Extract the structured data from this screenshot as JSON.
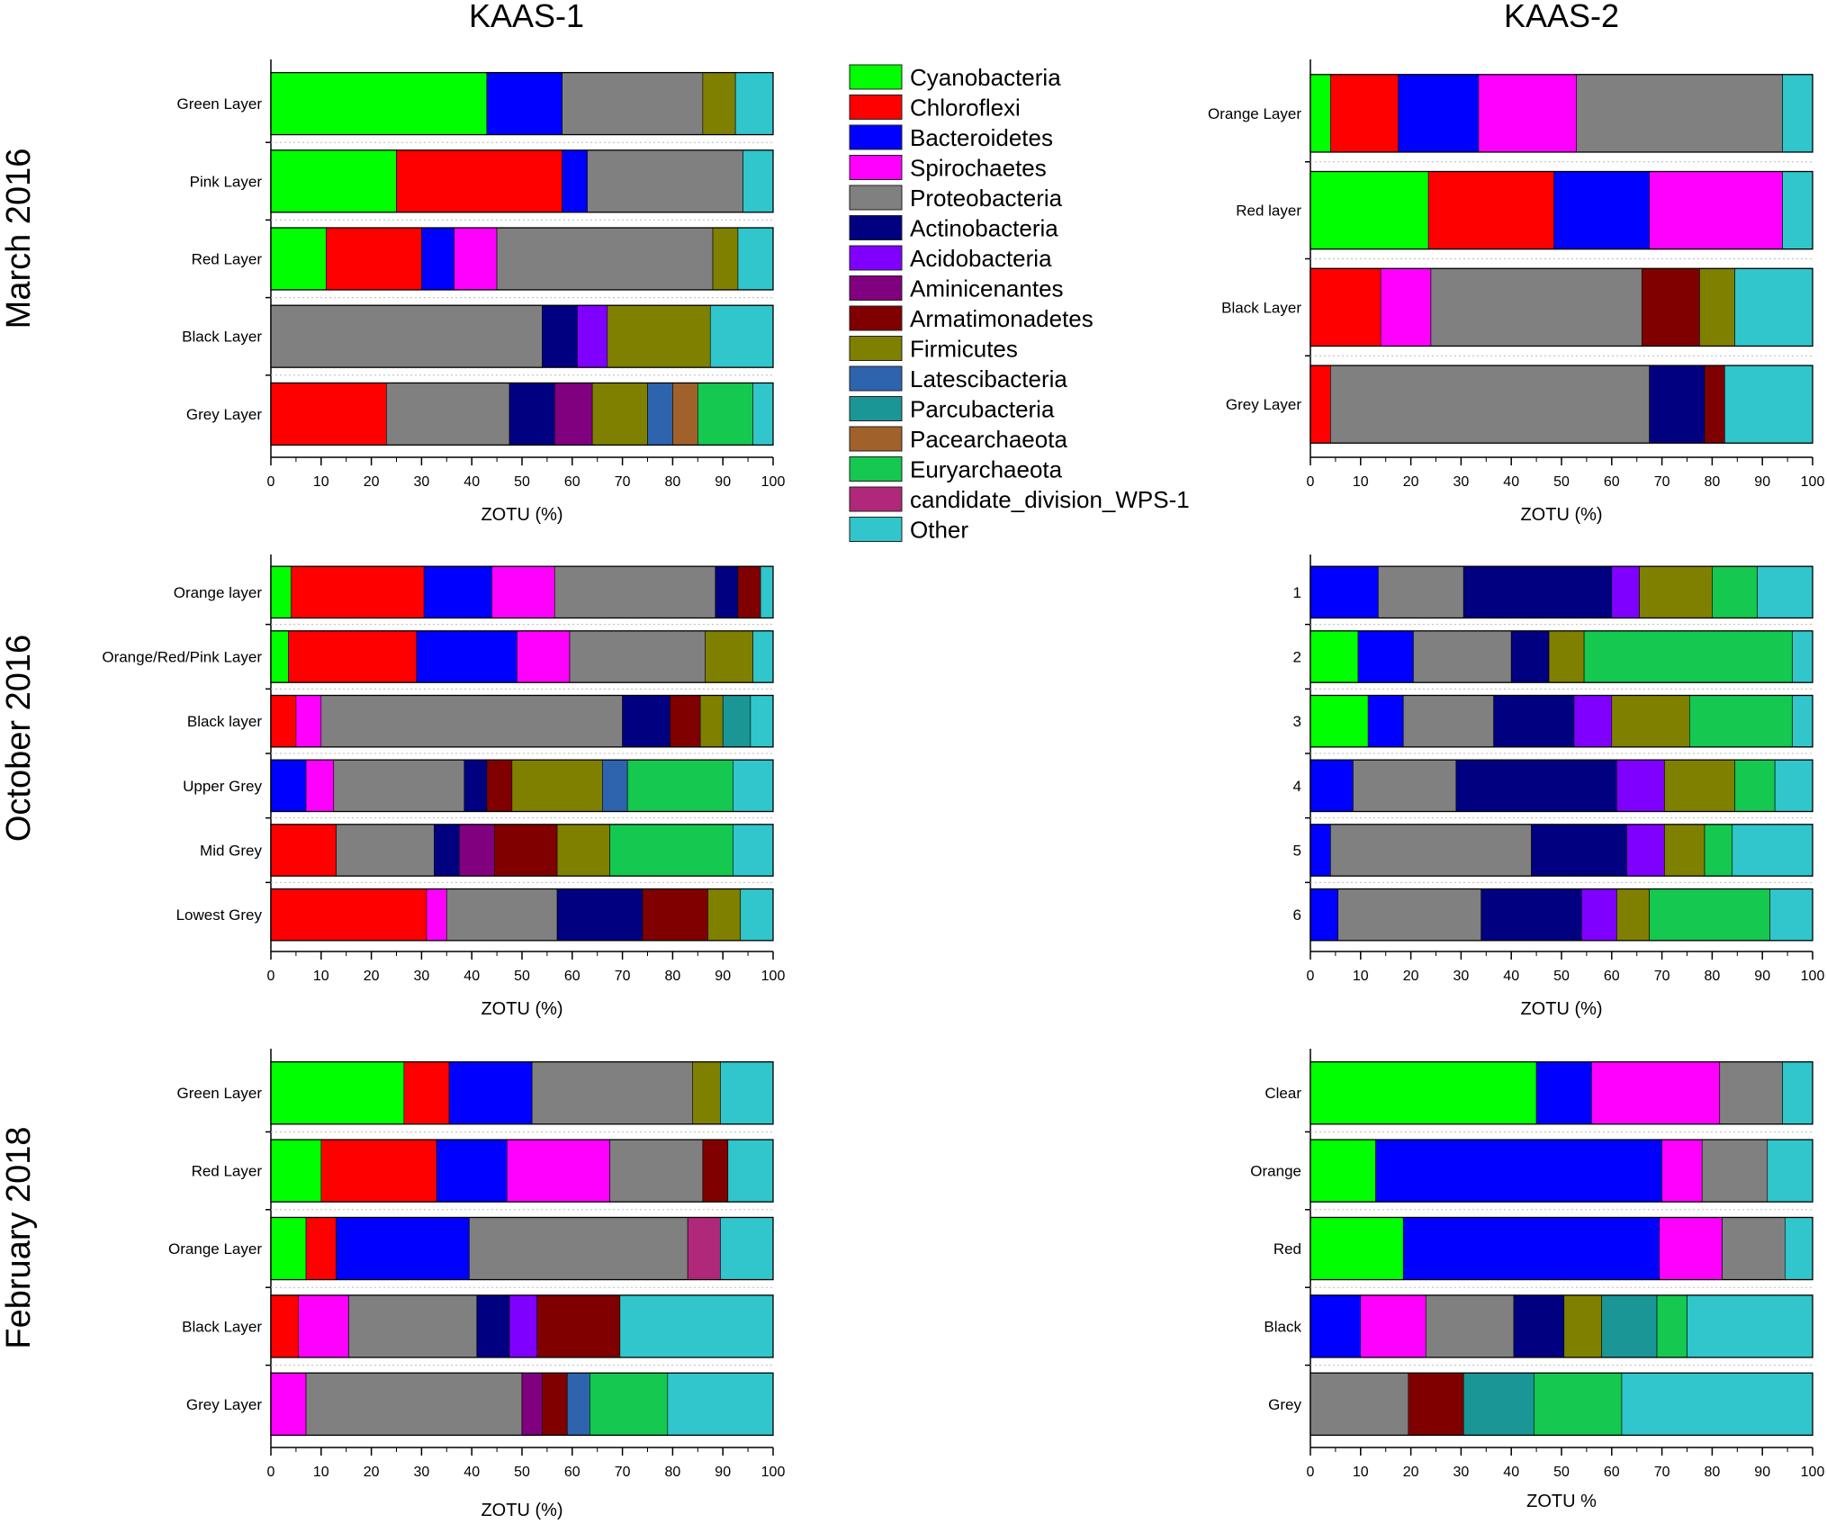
{
  "columns": [
    "KAAS-1",
    "KAAS-2"
  ],
  "row_titles": [
    "March 2016",
    "October 2016",
    "February 2018"
  ],
  "legend": [
    {
      "name": "Cyanobacteria",
      "color": "#00ff00"
    },
    {
      "name": "Chloroflexi",
      "color": "#ff0000"
    },
    {
      "name": "Bacteroidetes",
      "color": "#0000ff"
    },
    {
      "name": "Spirochaetes",
      "color": "#ff00ff"
    },
    {
      "name": "Proteobacteria",
      "color": "#808080"
    },
    {
      "name": "Actinobacteria",
      "color": "#000080"
    },
    {
      "name": "Acidobacteria",
      "color": "#8000ff"
    },
    {
      "name": "Aminicenantes",
      "color": "#800080"
    },
    {
      "name": "Armatimonadetes",
      "color": "#800000"
    },
    {
      "name": "Firmicutes",
      "color": "#808000"
    },
    {
      "name": "Latescibacteria",
      "color": "#2e64ae"
    },
    {
      "name": "Parcubacteria",
      "color": "#1a9696"
    },
    {
      "name": "Pacearchaeota",
      "color": "#a0622a"
    },
    {
      "name": "Euryarchaeota",
      "color": "#14c850"
    },
    {
      "name": "candidate_division_WPS-1",
      "color": "#b0287a"
    },
    {
      "name": "Other",
      "color": "#30c6cc"
    }
  ],
  "chart_data": [
    {
      "type": "bar",
      "orientation": "horizontal",
      "stacked": true,
      "column": "KAAS-1",
      "row": "March 2016",
      "xlabel": "ZOTU (%)",
      "xlim": [
        0,
        100
      ],
      "ticks": [
        "0",
        "10",
        "20",
        "30",
        "40",
        "50",
        "60",
        "70",
        "80",
        "90",
        "100"
      ],
      "categories": [
        "Green Layer",
        "Pink Layer",
        "Red Layer",
        "Black Layer",
        "Grey Layer"
      ],
      "bars": [
        [
          [
            "Cyanobacteria",
            43
          ],
          [
            "Bacteroidetes",
            15
          ],
          [
            "Proteobacteria",
            28
          ],
          [
            "Firmicutes",
            6.5
          ],
          [
            "Other",
            7.5
          ]
        ],
        [
          [
            "Cyanobacteria",
            25
          ],
          [
            "Chloroflexi",
            33
          ],
          [
            "Bacteroidetes",
            5
          ],
          [
            "Proteobacteria",
            31
          ],
          [
            "Other",
            6
          ]
        ],
        [
          [
            "Cyanobacteria",
            11
          ],
          [
            "Chloroflexi",
            19
          ],
          [
            "Bacteroidetes",
            6.5
          ],
          [
            "Spirochaetes",
            8.5
          ],
          [
            "Proteobacteria",
            43
          ],
          [
            "Firmicutes",
            5
          ],
          [
            "Other",
            7
          ]
        ],
        [
          [
            "Proteobacteria",
            54
          ],
          [
            "Actinobacteria",
            7
          ],
          [
            "Acidobacteria",
            6
          ],
          [
            "Firmicutes",
            20.5
          ],
          [
            "Other",
            12.5
          ]
        ],
        [
          [
            "Chloroflexi",
            23
          ],
          [
            "Proteobacteria",
            24.5
          ],
          [
            "Actinobacteria",
            9
          ],
          [
            "Aminicenantes",
            7.5
          ],
          [
            "Firmicutes",
            11
          ],
          [
            "Latescibacteria",
            5
          ],
          [
            "Pacearchaeota",
            5
          ],
          [
            "Euryarchaeota",
            11
          ],
          [
            "Other",
            4
          ]
        ]
      ]
    },
    {
      "type": "bar",
      "orientation": "horizontal",
      "stacked": true,
      "column": "KAAS-2",
      "row": "March 2016",
      "xlabel": "ZOTU (%)",
      "xlim": [
        0,
        100
      ],
      "ticks": [
        "0",
        "10",
        "20",
        "30",
        "40",
        "50",
        "60",
        "70",
        "80",
        "90",
        "100"
      ],
      "categories": [
        "Orange Layer",
        "Red layer",
        "Black Layer",
        "Grey Layer"
      ],
      "bars": [
        [
          [
            "Cyanobacteria",
            4
          ],
          [
            "Chloroflexi",
            13.5
          ],
          [
            "Bacteroidetes",
            16
          ],
          [
            "Spirochaetes",
            19.5
          ],
          [
            "Proteobacteria",
            41
          ],
          [
            "Other",
            6
          ]
        ],
        [
          [
            "Cyanobacteria",
            23.5
          ],
          [
            "Chloroflexi",
            25
          ],
          [
            "Bacteroidetes",
            19
          ],
          [
            "Spirochaetes",
            26.5
          ],
          [
            "Other",
            6
          ]
        ],
        [
          [
            "Chloroflexi",
            14
          ],
          [
            "Spirochaetes",
            10
          ],
          [
            "Proteobacteria",
            42
          ],
          [
            "Armatimonadetes",
            11.5
          ],
          [
            "Firmicutes",
            7
          ],
          [
            "Other",
            15.5
          ]
        ],
        [
          [
            "Chloroflexi",
            4
          ],
          [
            "Proteobacteria",
            63.5
          ],
          [
            "Actinobacteria",
            11
          ],
          [
            "Armatimonadetes",
            4
          ],
          [
            "Other",
            17.5
          ]
        ]
      ]
    },
    {
      "type": "bar",
      "orientation": "horizontal",
      "stacked": true,
      "column": "KAAS-1",
      "row": "October 2016",
      "xlabel": "ZOTU (%)",
      "xlim": [
        0,
        100
      ],
      "ticks": [
        "0",
        "10",
        "20",
        "30",
        "40",
        "50",
        "60",
        "70",
        "80",
        "90",
        "100"
      ],
      "categories": [
        "Orange layer",
        "Orange/Red/Pink Layer",
        "Black layer",
        "Upper Grey",
        "Mid Grey",
        "Lowest Grey"
      ],
      "bars": [
        [
          [
            "Cyanobacteria",
            4
          ],
          [
            "Chloroflexi",
            26.5
          ],
          [
            "Bacteroidetes",
            13.5
          ],
          [
            "Spirochaetes",
            12.5
          ],
          [
            "Proteobacteria",
            32
          ],
          [
            "Actinobacteria",
            4.5
          ],
          [
            "Armatimonadetes",
            4.5
          ],
          [
            "Other",
            2.5
          ]
        ],
        [
          [
            "Cyanobacteria",
            3.5
          ],
          [
            "Chloroflexi",
            25.5
          ],
          [
            "Bacteroidetes",
            20
          ],
          [
            "Spirochaetes",
            10.5
          ],
          [
            "Proteobacteria",
            27
          ],
          [
            "Firmicutes",
            9.5
          ],
          [
            "Other",
            4
          ]
        ],
        [
          [
            "Chloroflexi",
            5
          ],
          [
            "Spirochaetes",
            5
          ],
          [
            "Proteobacteria",
            60
          ],
          [
            "Actinobacteria",
            9.5
          ],
          [
            "Armatimonadetes",
            6
          ],
          [
            "Firmicutes",
            4.5
          ],
          [
            "Parcubacteria",
            5.5
          ],
          [
            "Other",
            4.5
          ]
        ],
        [
          [
            "Bacteroidetes",
            7
          ],
          [
            "Spirochaetes",
            5.5
          ],
          [
            "Proteobacteria",
            26
          ],
          [
            "Actinobacteria",
            4.5
          ],
          [
            "Armatimonadetes",
            5
          ],
          [
            "Firmicutes",
            18
          ],
          [
            "Latescibacteria",
            5
          ],
          [
            "Euryarchaeota",
            21
          ],
          [
            "Other",
            8
          ]
        ],
        [
          [
            "Chloroflexi",
            13
          ],
          [
            "Proteobacteria",
            19.5
          ],
          [
            "Actinobacteria",
            5
          ],
          [
            "Aminicenantes",
            7
          ],
          [
            "Armatimonadetes",
            12.5
          ],
          [
            "Firmicutes",
            10.5
          ],
          [
            "Euryarchaeota",
            24.5
          ],
          [
            "Other",
            8
          ]
        ],
        [
          [
            "Chloroflexi",
            31
          ],
          [
            "Spirochaetes",
            4
          ],
          [
            "Proteobacteria",
            22
          ],
          [
            "Actinobacteria",
            17
          ],
          [
            "Armatimonadetes",
            13
          ],
          [
            "Firmicutes",
            6.5
          ],
          [
            "Other",
            6.5
          ]
        ]
      ]
    },
    {
      "type": "bar",
      "orientation": "horizontal",
      "stacked": true,
      "column": "KAAS-2",
      "row": "October 2016",
      "xlabel": "ZOTU (%)",
      "xlim": [
        0,
        100
      ],
      "ticks": [
        "0",
        "10",
        "20",
        "30",
        "40",
        "50",
        "60",
        "70",
        "80",
        "90",
        "100"
      ],
      "categories": [
        "1",
        "2",
        "3",
        "4",
        "5",
        "6"
      ],
      "bars": [
        [
          [
            "Bacteroidetes",
            13.5
          ],
          [
            "Proteobacteria",
            17
          ],
          [
            "Actinobacteria",
            29.5
          ],
          [
            "Acidobacteria",
            5.5
          ],
          [
            "Firmicutes",
            14.5
          ],
          [
            "Euryarchaeota",
            9
          ],
          [
            "Other",
            11
          ]
        ],
        [
          [
            "Cyanobacteria",
            9.5
          ],
          [
            "Bacteroidetes",
            11
          ],
          [
            "Proteobacteria",
            19.5
          ],
          [
            "Actinobacteria",
            7.5
          ],
          [
            "Firmicutes",
            7
          ],
          [
            "Euryarchaeota",
            41.5
          ],
          [
            "Other",
            4
          ]
        ],
        [
          [
            "Cyanobacteria",
            11.5
          ],
          [
            "Bacteroidetes",
            7
          ],
          [
            "Proteobacteria",
            18
          ],
          [
            "Actinobacteria",
            16
          ],
          [
            "Acidobacteria",
            7.5
          ],
          [
            "Firmicutes",
            15.5
          ],
          [
            "Euryarchaeota",
            20.5
          ],
          [
            "Other",
            4
          ]
        ],
        [
          [
            "Bacteroidetes",
            8.5
          ],
          [
            "Proteobacteria",
            20.5
          ],
          [
            "Actinobacteria",
            32
          ],
          [
            "Acidobacteria",
            9.5
          ],
          [
            "Firmicutes",
            14
          ],
          [
            "Euryarchaeota",
            8
          ],
          [
            "Other",
            7.5
          ]
        ],
        [
          [
            "Bacteroidetes",
            4
          ],
          [
            "Proteobacteria",
            40
          ],
          [
            "Actinobacteria",
            19
          ],
          [
            "Acidobacteria",
            7.5
          ],
          [
            "Firmicutes",
            8
          ],
          [
            "Euryarchaeota",
            5.5
          ],
          [
            "Other",
            16
          ]
        ],
        [
          [
            "Bacteroidetes",
            5.5
          ],
          [
            "Proteobacteria",
            28.5
          ],
          [
            "Actinobacteria",
            20
          ],
          [
            "Acidobacteria",
            7
          ],
          [
            "Firmicutes",
            6.5
          ],
          [
            "Euryarchaeota",
            24
          ],
          [
            "Other",
            8.5
          ]
        ]
      ]
    },
    {
      "type": "bar",
      "orientation": "horizontal",
      "stacked": true,
      "column": "KAAS-1",
      "row": "February 2018",
      "xlabel": "ZOTU (%)",
      "xlim": [
        0,
        100
      ],
      "ticks": [
        "0",
        "10",
        "20",
        "30",
        "40",
        "50",
        "60",
        "70",
        "80",
        "90",
        "100"
      ],
      "categories": [
        "Green Layer",
        "Red Layer",
        "Orange Layer",
        "Black Layer",
        "Grey Layer"
      ],
      "bars": [
        [
          [
            "Cyanobacteria",
            26.5
          ],
          [
            "Chloroflexi",
            9
          ],
          [
            "Bacteroidetes",
            16.5
          ],
          [
            "Proteobacteria",
            32
          ],
          [
            "Firmicutes",
            5.5
          ],
          [
            "Other",
            10.5
          ]
        ],
        [
          [
            "Cyanobacteria",
            10
          ],
          [
            "Chloroflexi",
            23
          ],
          [
            "Bacteroidetes",
            14
          ],
          [
            "Spirochaetes",
            20.5
          ],
          [
            "Proteobacteria",
            18.5
          ],
          [
            "Armatimonadetes",
            5
          ],
          [
            "Other",
            9
          ]
        ],
        [
          [
            "Cyanobacteria",
            7
          ],
          [
            "Chloroflexi",
            6
          ],
          [
            "Bacteroidetes",
            26.5
          ],
          [
            "Proteobacteria",
            43.5
          ],
          [
            "candidate_division_WPS-1",
            6.5
          ],
          [
            "Other",
            10.5
          ]
        ],
        [
          [
            "Chloroflexi",
            5.5
          ],
          [
            "Spirochaetes",
            10
          ],
          [
            "Proteobacteria",
            25.5
          ],
          [
            "Actinobacteria",
            6.5
          ],
          [
            "Acidobacteria",
            5.5
          ],
          [
            "Armatimonadetes",
            16.5
          ],
          [
            "Other",
            30.5
          ]
        ],
        [
          [
            "Spirochaetes",
            7
          ],
          [
            "Proteobacteria",
            43
          ],
          [
            "Aminicenantes",
            4
          ],
          [
            "Armatimonadetes",
            5
          ],
          [
            "Latescibacteria",
            4.5
          ],
          [
            "Euryarchaeota",
            15.5
          ],
          [
            "Other",
            21
          ]
        ]
      ]
    },
    {
      "type": "bar",
      "orientation": "horizontal",
      "stacked": true,
      "column": "KAAS-2",
      "row": "February 2018",
      "xlabel": "ZOTU %",
      "xlim": [
        0,
        100
      ],
      "ticks": [
        "0",
        "10",
        "20",
        "30",
        "40",
        "50",
        "60",
        "70",
        "80",
        "90",
        "100"
      ],
      "categories": [
        "Clear",
        "Orange",
        "Red",
        "Black",
        "Grey"
      ],
      "bars": [
        [
          [
            "Cyanobacteria",
            45
          ],
          [
            "Bacteroidetes",
            11
          ],
          [
            "Spirochaetes",
            25.5
          ],
          [
            "Proteobacteria",
            12.5
          ],
          [
            "Other",
            6
          ]
        ],
        [
          [
            "Cyanobacteria",
            13
          ],
          [
            "Bacteroidetes",
            57
          ],
          [
            "Spirochaetes",
            8
          ],
          [
            "Proteobacteria",
            13
          ],
          [
            "Other",
            9
          ]
        ],
        [
          [
            "Cyanobacteria",
            18.5
          ],
          [
            "Bacteroidetes",
            51
          ],
          [
            "Spirochaetes",
            12.5
          ],
          [
            "Proteobacteria",
            12.5
          ],
          [
            "Other",
            5.5
          ]
        ],
        [
          [
            "Bacteroidetes",
            10
          ],
          [
            "Spirochaetes",
            13
          ],
          [
            "Proteobacteria",
            17.5
          ],
          [
            "Actinobacteria",
            10
          ],
          [
            "Firmicutes",
            7.5
          ],
          [
            "Parcubacteria",
            11
          ],
          [
            "Euryarchaeota",
            6
          ],
          [
            "Other",
            25
          ]
        ],
        [
          [
            "Proteobacteria",
            19.5
          ],
          [
            "Armatimonadetes",
            11
          ],
          [
            "Parcubacteria",
            14
          ],
          [
            "Euryarchaeota",
            17.5
          ],
          [
            "Other",
            38
          ]
        ]
      ]
    }
  ]
}
